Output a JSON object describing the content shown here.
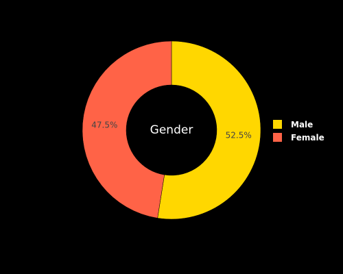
{
  "chart_data": {
    "type": "pie",
    "hole": true,
    "title": "Gender",
    "labels": [
      "Male",
      "Female"
    ],
    "values": [
      52.5,
      47.5
    ],
    "value_labels": [
      "52.5%",
      "47.5%"
    ],
    "colors": [
      "#FFD700",
      "#FF6347"
    ],
    "legend_position": "right"
  }
}
